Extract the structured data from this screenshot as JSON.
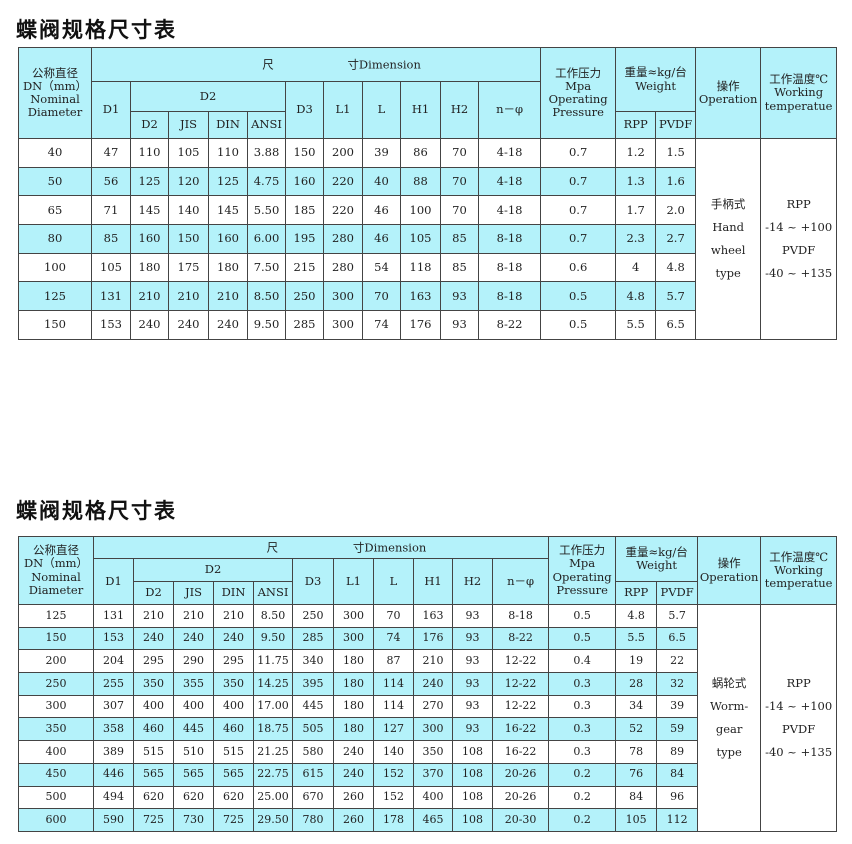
{
  "header": {
    "dn": [
      "公称直径",
      "DN（mm）",
      "Nominal",
      "Diameter"
    ],
    "dimension_left": "尺",
    "dimension_right": "寸Dimension",
    "d1": "D1",
    "d2_group": "D2",
    "d2": "D2",
    "jis": "JIS",
    "din": "DIN",
    "ansi": "ANSI",
    "d3": "D3",
    "l1": "L1",
    "l": "L",
    "h1": "H1",
    "h2": "H2",
    "n_phi": "n－φ",
    "pressure": [
      "工作压力",
      "Mpa",
      "Operating",
      "Pressure"
    ],
    "weight": [
      "重量≈kg/台",
      "Weight"
    ],
    "rpp": "RPP",
    "pvdf": "PVDF",
    "operation": [
      "操作",
      "Operation"
    ],
    "temperature": [
      "工作温度℃",
      "Working",
      "temperatue"
    ]
  },
  "tables": [
    {
      "title": "蝶阀规格尺寸表",
      "operation": [
        "手柄式",
        "Hand",
        "wheel",
        "type"
      ],
      "temperature": [
        "RPP",
        "-14 ~ +100",
        "PVDF",
        "-40 ~ +135"
      ],
      "rows": [
        [
          "40",
          "47",
          "110",
          "105",
          "110",
          "3.88",
          "150",
          "200",
          "39",
          "86",
          "70",
          "4-18",
          "0.7",
          "1.2",
          "1.5"
        ],
        [
          "50",
          "56",
          "125",
          "120",
          "125",
          "4.75",
          "160",
          "220",
          "40",
          "88",
          "70",
          "4-18",
          "0.7",
          "1.3",
          "1.6"
        ],
        [
          "65",
          "71",
          "145",
          "140",
          "145",
          "5.50",
          "185",
          "220",
          "46",
          "100",
          "70",
          "4-18",
          "0.7",
          "1.7",
          "2.0"
        ],
        [
          "80",
          "85",
          "160",
          "150",
          "160",
          "6.00",
          "195",
          "280",
          "46",
          "105",
          "85",
          "8-18",
          "0.7",
          "2.3",
          "2.7"
        ],
        [
          "100",
          "105",
          "180",
          "175",
          "180",
          "7.50",
          "215",
          "280",
          "54",
          "118",
          "85",
          "8-18",
          "0.6",
          "4",
          "4.8"
        ],
        [
          "125",
          "131",
          "210",
          "210",
          "210",
          "8.50",
          "250",
          "300",
          "70",
          "163",
          "93",
          "8-18",
          "0.5",
          "4.8",
          "5.7"
        ],
        [
          "150",
          "153",
          "240",
          "240",
          "240",
          "9.50",
          "285",
          "300",
          "74",
          "176",
          "93",
          "8-22",
          "0.5",
          "5.5",
          "6.5"
        ]
      ]
    },
    {
      "title": "蝶阀规格尺寸表",
      "operation": [
        "蜗轮式",
        "Worm-",
        "gear",
        "type"
      ],
      "temperature": [
        "RPP",
        "-14 ~ +100",
        "PVDF",
        "-40 ~ +135"
      ],
      "rows": [
        [
          "125",
          "131",
          "210",
          "210",
          "210",
          "8.50",
          "250",
          "300",
          "70",
          "163",
          "93",
          "8-18",
          "0.5",
          "4.8",
          "5.7"
        ],
        [
          "150",
          "153",
          "240",
          "240",
          "240",
          "9.50",
          "285",
          "300",
          "74",
          "176",
          "93",
          "8-22",
          "0.5",
          "5.5",
          "6.5"
        ],
        [
          "200",
          "204",
          "295",
          "290",
          "295",
          "11.75",
          "340",
          "180",
          "87",
          "210",
          "93",
          "12-22",
          "0.4",
          "19",
          "22"
        ],
        [
          "250",
          "255",
          "350",
          "355",
          "350",
          "14.25",
          "395",
          "180",
          "114",
          "240",
          "93",
          "12-22",
          "0.3",
          "28",
          "32"
        ],
        [
          "300",
          "307",
          "400",
          "400",
          "400",
          "17.00",
          "445",
          "180",
          "114",
          "270",
          "93",
          "12-22",
          "0.3",
          "34",
          "39"
        ],
        [
          "350",
          "358",
          "460",
          "445",
          "460",
          "18.75",
          "505",
          "180",
          "127",
          "300",
          "93",
          "16-22",
          "0.3",
          "52",
          "59"
        ],
        [
          "400",
          "389",
          "515",
          "510",
          "515",
          "21.25",
          "580",
          "240",
          "140",
          "350",
          "108",
          "16-22",
          "0.3",
          "78",
          "89"
        ],
        [
          "450",
          "446",
          "565",
          "565",
          "565",
          "22.75",
          "615",
          "240",
          "152",
          "370",
          "108",
          "20-26",
          "0.2",
          "76",
          "84"
        ],
        [
          "500",
          "494",
          "620",
          "620",
          "620",
          "25.00",
          "670",
          "260",
          "152",
          "400",
          "108",
          "20-26",
          "0.2",
          "84",
          "96"
        ],
        [
          "600",
          "590",
          "725",
          "730",
          "725",
          "29.50",
          "780",
          "260",
          "178",
          "465",
          "108",
          "20-30",
          "0.2",
          "105",
          "112"
        ]
      ]
    }
  ],
  "colors": {
    "header_fill": "#b4f2fa",
    "stripe_fill": "#b4f2fa",
    "border": "#444444"
  }
}
